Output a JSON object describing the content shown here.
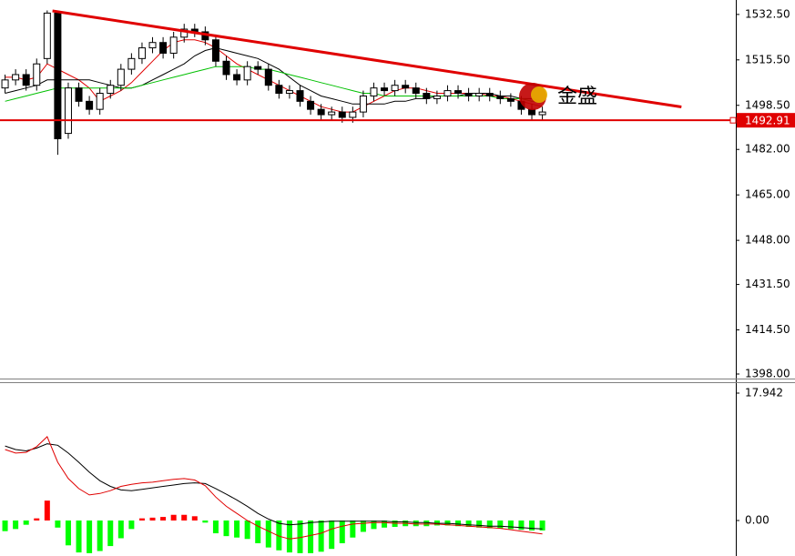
{
  "chart_data": [
    {
      "type": "candlestick",
      "x": [
        0,
        1,
        2,
        3,
        4,
        5,
        6,
        7,
        8,
        9,
        10,
        11,
        12,
        13,
        14,
        15,
        16,
        17,
        18,
        19,
        20,
        21,
        22,
        23,
        24,
        25,
        26,
        27,
        28,
        29,
        30,
        31,
        32,
        33,
        34,
        35,
        36,
        37,
        38,
        39,
        40,
        41,
        42,
        43,
        44,
        45,
        46,
        47,
        48,
        49,
        50,
        51
      ],
      "xlim": [
        -0.48,
        69.36
      ],
      "open": [
        1505,
        1508,
        1510,
        1506,
        1516,
        1533,
        1488,
        1505,
        1500,
        1497,
        1503,
        1506,
        1512,
        1516,
        1520,
        1522,
        1518,
        1524,
        1527,
        1526,
        1523,
        1515,
        1510,
        1508,
        1513,
        1512,
        1506,
        1503,
        1504,
        1500,
        1497,
        1495,
        1496,
        1494,
        1496,
        1502,
        1505,
        1504,
        1506,
        1505,
        1503,
        1501,
        1502,
        1504,
        1503,
        1502,
        1503,
        1502,
        1501,
        1500,
        1497,
        1495
      ],
      "high": [
        1510,
        1512,
        1512,
        1516,
        1534,
        1534,
        1507,
        1507,
        1502,
        1505,
        1508,
        1514,
        1518,
        1522,
        1524,
        1524,
        1526,
        1529,
        1529,
        1528,
        1525,
        1517,
        1512,
        1515,
        1515,
        1514,
        1508,
        1506,
        1506,
        1502,
        1499,
        1498,
        1498,
        1498,
        1504,
        1507,
        1507,
        1508,
        1508,
        1507,
        1505,
        1504,
        1506,
        1506,
        1505,
        1505,
        1505,
        1504,
        1503,
        1502,
        1499,
        1498
      ],
      "low": [
        1503,
        1506,
        1504,
        1504,
        1514,
        1480,
        1486,
        1498,
        1495,
        1495,
        1501,
        1504,
        1510,
        1514,
        1518,
        1516,
        1516,
        1522,
        1524,
        1521,
        1513,
        1508,
        1506,
        1506,
        1510,
        1504,
        1501,
        1501,
        1498,
        1495,
        1493,
        1493,
        1492,
        1492,
        1494,
        1500,
        1502,
        1502,
        1503,
        1501,
        1499,
        1499,
        1500,
        1501,
        1500,
        1500,
        1500,
        1499,
        1498,
        1495,
        1493,
        1493
      ],
      "close": [
        1508,
        1510,
        1506,
        1514,
        1533,
        1486,
        1505,
        1500,
        1497,
        1503,
        1506,
        1512,
        1516,
        1520,
        1522,
        1518,
        1524,
        1527,
        1526,
        1523,
        1515,
        1510,
        1508,
        1513,
        1512,
        1506,
        1503,
        1504,
        1500,
        1497,
        1495,
        1496,
        1494,
        1496,
        1502,
        1505,
        1504,
        1506,
        1505,
        1503,
        1501,
        1502,
        1504,
        1503,
        1502,
        1503,
        1502,
        1501,
        1500,
        1497,
        1495,
        1496
      ],
      "series": [
        {
          "color": "#e00000",
          "values": [
            1509,
            1509,
            1508,
            1509,
            1514,
            1512,
            1510,
            1508,
            1505,
            1500,
            1502,
            1504,
            1507,
            1511,
            1515,
            1519,
            1522,
            1523,
            1523,
            1522,
            1520,
            1517,
            1514,
            1512,
            1510,
            1508,
            1506,
            1504,
            1502,
            1500,
            1498,
            1497,
            1496,
            1496,
            1498,
            1500,
            1502,
            1504,
            1505,
            1505,
            1504,
            1503,
            1503,
            1503,
            1503,
            1503,
            1502,
            1502,
            1501,
            1500,
            1499,
            1498
          ]
        },
        {
          "color": "#000000",
          "values": [
            1503,
            1504,
            1505,
            1506,
            1508,
            1508,
            1508,
            1508,
            1508,
            1507,
            1506,
            1505,
            1505,
            1506,
            1508,
            1510,
            1512,
            1514,
            1517,
            1519,
            1520,
            1519,
            1518,
            1517,
            1516,
            1514,
            1512,
            1509,
            1506,
            1504,
            1502,
            1501,
            1500,
            1499,
            1499,
            1499,
            1499,
            1500,
            1500,
            1501,
            1501,
            1502,
            1502,
            1502,
            1503,
            1503,
            1503,
            1502,
            1502,
            1501,
            1501,
            1500
          ]
        },
        {
          "color": "#00c000",
          "values": [
            1500,
            1501,
            1502,
            1503,
            1504,
            1505,
            1505,
            1505,
            1505,
            1505,
            1505,
            1505,
            1505,
            1506,
            1507,
            1508,
            1509,
            1510,
            1511,
            1512,
            1513,
            1513,
            1513,
            1513,
            1512,
            1512,
            1511,
            1510,
            1509,
            1508,
            1507,
            1506,
            1505,
            1504,
            1503,
            1503,
            1502,
            1502,
            1502,
            1502,
            1502,
            1502,
            1502,
            1502,
            1502,
            1502,
            1502,
            1501,
            1501,
            1501,
            1500,
            1500
          ]
        }
      ],
      "trendline": {
        "x": [
          4.5,
          64.2
        ],
        "y": [
          1533.8,
          1497.9
        ],
        "color": "#e00000"
      },
      "level": {
        "value": 1492.91,
        "color": "#e00000"
      },
      "watermark": "金盛",
      "ylim": [
        1396.3,
        1537.9
      ],
      "yticks": [
        {
          "value": 1532.5,
          "label": "1532.50"
        },
        {
          "value": 1515.5,
          "label": "1515.50"
        },
        {
          "value": 1498.5,
          "label": "1498.50"
        },
        {
          "value": 1482,
          "label": "1482.00"
        },
        {
          "value": 1465,
          "label": "1465.00"
        },
        {
          "value": 1448,
          "label": "1448.00"
        },
        {
          "value": 1431.5,
          "label": "1431.50"
        },
        {
          "value": 1414.5,
          "label": "1414.50"
        },
        {
          "value": 1398,
          "label": "1398.00"
        }
      ]
    },
    {
      "type": "macd",
      "x": [
        0,
        1,
        2,
        3,
        4,
        5,
        6,
        7,
        8,
        9,
        10,
        11,
        12,
        13,
        14,
        15,
        16,
        17,
        18,
        19,
        20,
        21,
        22,
        23,
        24,
        25,
        26,
        27,
        28,
        29,
        30,
        31,
        32,
        33,
        34,
        35,
        36,
        37,
        38,
        39,
        40,
        41,
        42,
        43,
        44,
        45,
        46,
        47,
        48,
        49,
        50,
        51
      ],
      "xlim": [
        -0.48,
        69.36
      ],
      "histogram": {
        "up_color": "#ff0000",
        "down_color": "#00ff00",
        "values": [
          -1.5,
          -1.2,
          -0.6,
          0.3,
          2.8,
          -1.0,
          -3.5,
          -4.5,
          -4.6,
          -4.3,
          -3.6,
          -2.5,
          -1.2,
          0.3,
          0.4,
          0.5,
          0.8,
          0.8,
          0.6,
          -0.3,
          -1.8,
          -2.2,
          -2.4,
          -2.6,
          -3.2,
          -3.8,
          -4.2,
          -4.5,
          -4.6,
          -4.6,
          -4.4,
          -4.0,
          -3.2,
          -2.4,
          -1.6,
          -1.2,
          -1.0,
          -0.9,
          -0.8,
          -0.8,
          -0.8,
          -0.7,
          -0.7,
          -0.8,
          -0.9,
          -1.0,
          -1.1,
          -1.1,
          -1.2,
          -1.3,
          -1.4,
          -1.4
        ]
      },
      "series": [
        {
          "color": "#000000",
          "values": [
            10.5,
            10.0,
            9.8,
            10.2,
            10.8,
            10.6,
            9.5,
            8.2,
            6.8,
            5.6,
            4.8,
            4.3,
            4.2,
            4.4,
            4.6,
            4.8,
            5.0,
            5.2,
            5.3,
            5.2,
            4.5,
            3.7,
            2.9,
            2.0,
            1.0,
            0.2,
            -0.4,
            -0.6,
            -0.5,
            -0.3,
            -0.2,
            -0.1,
            -0.1,
            -0.1,
            -0.1,
            -0.1,
            -0.1,
            -0.2,
            -0.2,
            -0.3,
            -0.3,
            -0.4,
            -0.4,
            -0.5,
            -0.6,
            -0.7,
            -0.8,
            -0.8,
            -0.9,
            -1.0,
            -1.1,
            -1.2
          ]
        },
        {
          "color": "#e00000",
          "values": [
            10.0,
            9.5,
            9.6,
            10.4,
            11.8,
            8.2,
            5.9,
            4.5,
            3.6,
            3.8,
            4.2,
            4.8,
            5.1,
            5.3,
            5.4,
            5.6,
            5.8,
            5.9,
            5.7,
            4.9,
            3.3,
            2.0,
            1.0,
            0.0,
            -0.8,
            -1.5,
            -2.2,
            -2.6,
            -2.4,
            -2.1,
            -1.8,
            -1.2,
            -0.8,
            -0.5,
            -0.4,
            -0.3,
            -0.3,
            -0.4,
            -0.4,
            -0.5,
            -0.5,
            -0.5,
            -0.6,
            -0.7,
            -0.8,
            -0.9,
            -1.0,
            -1.1,
            -1.3,
            -1.5,
            -1.7,
            -1.9
          ]
        }
      ],
      "ylim": [
        -5.0,
        19.35
      ],
      "yticks": [
        17.942,
        {
          "value": 0,
          "label": "0.00"
        }
      ]
    }
  ]
}
